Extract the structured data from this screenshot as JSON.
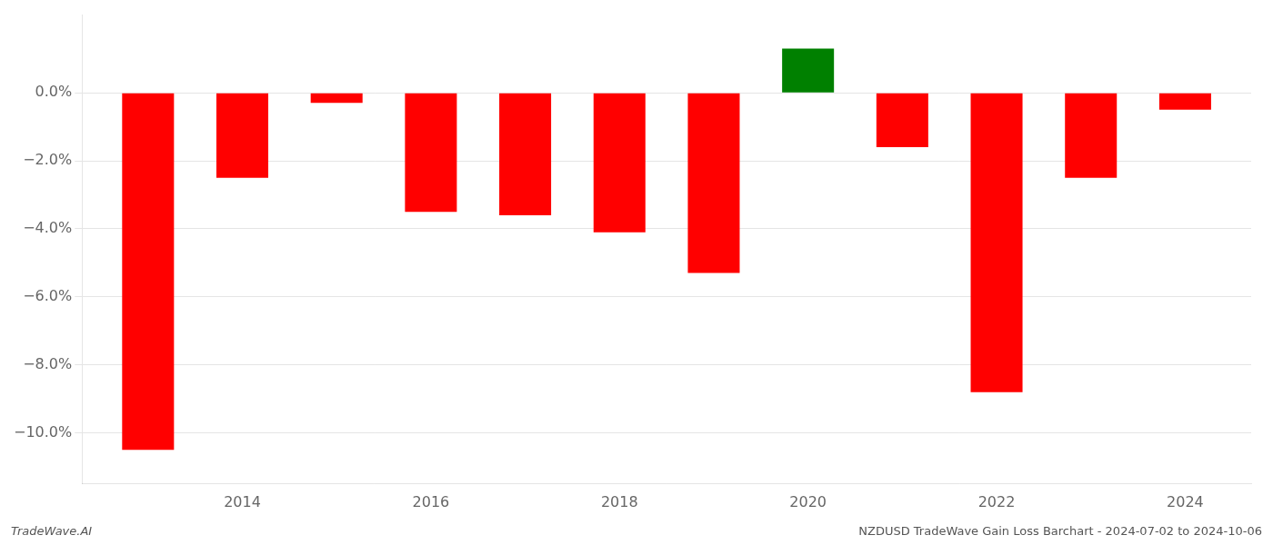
{
  "chart_data": {
    "type": "bar",
    "x": [
      2013,
      2014,
      2015,
      2016,
      2017,
      2018,
      2019,
      2020,
      2021,
      2022,
      2023,
      2024
    ],
    "values": [
      -10.5,
      -2.5,
      -0.3,
      -3.5,
      -3.6,
      -4.1,
      -5.3,
      1.3,
      -1.6,
      -8.8,
      -2.5,
      -0.5
    ],
    "colors": [
      "#ff0000",
      "#ff0000",
      "#ff0000",
      "#ff0000",
      "#ff0000",
      "#ff0000",
      "#ff0000",
      "#008000",
      "#ff0000",
      "#ff0000",
      "#ff0000",
      "#ff0000"
    ],
    "xlim": [
      2012.3,
      2024.7
    ],
    "xticks": [
      2014,
      2016,
      2018,
      2020,
      2022,
      2024
    ],
    "ylim": [
      -11.5,
      2.3
    ],
    "yticks": [
      {
        "value": 0.0,
        "label": "0.0%"
      },
      {
        "value": -2.0,
        "label": "−2.0%"
      },
      {
        "value": -4.0,
        "label": "−4.0%"
      },
      {
        "value": -6.0,
        "label": "−6.0%"
      },
      {
        "value": -8.0,
        "label": "−8.0%"
      },
      {
        "value": -10.0,
        "label": "−10.0%"
      }
    ],
    "grid": "y",
    "annotations": [
      "TradeWave.AI",
      "NZDUSD TradeWave Gain Loss Barchart - 2024-07-02 to 2024-10-06"
    ]
  }
}
